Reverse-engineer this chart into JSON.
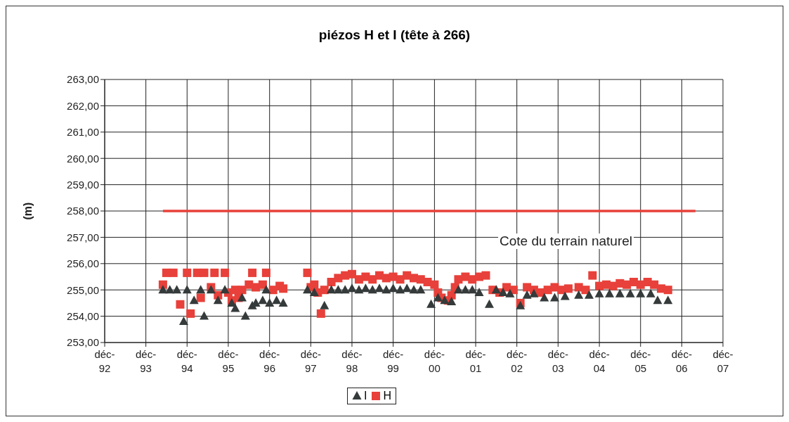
{
  "chart_data": {
    "type": "scatter",
    "title": "piézos H et I (tête à 266)",
    "ylabel": "(m)",
    "xlim": [
      "1992-12",
      "2007-12"
    ],
    "xticks": [
      {
        "value": "1992-12",
        "label": "déc-92"
      },
      {
        "value": "1993-12",
        "label": "déc-93"
      },
      {
        "value": "1994-12",
        "label": "déc-94"
      },
      {
        "value": "1995-12",
        "label": "déc-95"
      },
      {
        "value": "1996-12",
        "label": "déc-96"
      },
      {
        "value": "1997-12",
        "label": "déc-97"
      },
      {
        "value": "1998-12",
        "label": "déc-98"
      },
      {
        "value": "1999-12",
        "label": "déc-99"
      },
      {
        "value": "2000-12",
        "label": "déc-00"
      },
      {
        "value": "2001-12",
        "label": "déc-01"
      },
      {
        "value": "2002-12",
        "label": "déc-02"
      },
      {
        "value": "2003-12",
        "label": "déc-03"
      },
      {
        "value": "2004-12",
        "label": "déc-04"
      },
      {
        "value": "2005-12",
        "label": "déc-05"
      },
      {
        "value": "2006-12",
        "label": "déc-06"
      },
      {
        "value": "2007-12",
        "label": "déc-07"
      }
    ],
    "ylim": [
      253,
      263
    ],
    "yticks": [
      {
        "value": 253,
        "label": "253,00"
      },
      {
        "value": 254,
        "label": "254,00"
      },
      {
        "value": 255,
        "label": "255,00"
      },
      {
        "value": 256,
        "label": "256,00"
      },
      {
        "value": 257,
        "label": "257,00"
      },
      {
        "value": 258,
        "label": "258,00"
      },
      {
        "value": 259,
        "label": "259,00"
      },
      {
        "value": 260,
        "label": "260,00"
      },
      {
        "value": 261,
        "label": "261,00"
      },
      {
        "value": 262,
        "label": "262,00"
      },
      {
        "value": 263,
        "label": "263,00"
      }
    ],
    "grid": true,
    "legend": "bottom",
    "series": [
      {
        "name": "I",
        "marker": "triangle",
        "color": "#353a3a",
        "x": [
          "1994-05",
          "1994-07",
          "1994-09",
          "1994-11",
          "1994-12",
          "1995-02",
          "1995-04",
          "1995-05",
          "1995-07",
          "1995-09",
          "1995-11",
          "1996-01",
          "1996-02",
          "1996-04",
          "1996-05",
          "1996-07",
          "1996-08",
          "1996-10",
          "1996-11",
          "1996-12",
          "1997-02",
          "1997-04",
          "1997-11",
          "1998-01",
          "1998-04",
          "1998-06",
          "1998-08",
          "1998-10",
          "1998-12",
          "1999-02",
          "1999-04",
          "1999-06",
          "1999-08",
          "1999-10",
          "1999-12",
          "2000-02",
          "2000-04",
          "2000-06",
          "2000-08",
          "2000-11",
          "2001-01",
          "2001-03",
          "2001-05",
          "2001-07",
          "2001-09",
          "2001-11",
          "2002-01",
          "2002-04",
          "2002-06",
          "2002-08",
          "2002-10",
          "2003-01",
          "2003-03",
          "2003-05",
          "2003-08",
          "2003-11",
          "2004-02",
          "2004-06",
          "2004-09",
          "2004-12",
          "2005-03",
          "2005-06",
          "2005-09",
          "2005-12",
          "2006-03",
          "2006-05",
          "2006-08"
        ],
        "values": [
          255.0,
          255.0,
          255.0,
          253.8,
          255.0,
          254.6,
          255.0,
          254.0,
          255.0,
          254.6,
          255.0,
          254.5,
          254.3,
          254.7,
          254.0,
          254.4,
          254.5,
          254.6,
          255.0,
          254.5,
          254.6,
          254.5,
          255.0,
          254.9,
          254.4,
          255.0,
          255.0,
          255.0,
          255.05,
          255.0,
          255.05,
          255.0,
          255.05,
          255.0,
          255.05,
          255.0,
          255.05,
          255.0,
          255.0,
          254.45,
          254.7,
          254.6,
          254.55,
          255.0,
          255.0,
          255.0,
          254.9,
          254.45,
          255.0,
          254.9,
          254.85,
          254.4,
          254.8,
          254.85,
          254.7,
          254.7,
          254.75,
          254.8,
          254.8,
          254.85,
          254.85,
          254.85,
          254.85,
          254.85,
          254.85,
          254.6,
          254.6
        ]
      },
      {
        "name": "H",
        "marker": "square",
        "color": "#e8403a",
        "x": [
          "1994-05",
          "1994-06",
          "1994-08",
          "1994-10",
          "1994-12",
          "1995-01",
          "1995-03",
          "1995-04",
          "1995-05",
          "1995-07",
          "1995-08",
          "1995-09",
          "1995-11",
          "1995-12",
          "1996-01",
          "1996-02",
          "1996-03",
          "1996-04",
          "1996-06",
          "1996-07",
          "1996-08",
          "1996-10",
          "1996-11",
          "1997-01",
          "1997-03",
          "1997-04",
          "1997-11",
          "1997-12",
          "1998-01",
          "1998-02",
          "1998-03",
          "1998-04",
          "1998-06",
          "1998-08",
          "1998-10",
          "1998-12",
          "1999-02",
          "1999-04",
          "1999-06",
          "1999-08",
          "1999-10",
          "1999-12",
          "2000-02",
          "2000-04",
          "2000-06",
          "2000-08",
          "2000-10",
          "2000-12",
          "2001-01",
          "2001-02",
          "2001-04",
          "2001-05",
          "2001-06",
          "2001-07",
          "2001-09",
          "2001-11",
          "2002-01",
          "2002-03",
          "2002-05",
          "2002-07",
          "2002-09",
          "2002-11",
          "2003-01",
          "2003-03",
          "2003-05",
          "2003-07",
          "2003-09",
          "2003-11",
          "2004-01",
          "2004-03",
          "2004-06",
          "2004-08",
          "2004-10",
          "2004-12",
          "2005-02",
          "2005-04",
          "2005-06",
          "2005-08",
          "2005-10",
          "2005-12",
          "2006-02",
          "2006-04",
          "2006-06",
          "2006-08"
        ],
        "values": [
          255.2,
          255.65,
          255.65,
          254.45,
          255.65,
          254.1,
          255.65,
          254.7,
          255.65,
          255.1,
          255.65,
          254.8,
          255.65,
          254.9,
          254.6,
          255.0,
          254.7,
          255.0,
          255.2,
          255.65,
          255.1,
          255.2,
          255.65,
          255.0,
          255.15,
          255.05,
          255.65,
          255.1,
          255.2,
          254.9,
          254.1,
          255.0,
          255.3,
          255.45,
          255.55,
          255.6,
          255.4,
          255.5,
          255.4,
          255.55,
          255.45,
          255.5,
          255.4,
          255.55,
          255.45,
          255.4,
          255.3,
          255.2,
          254.9,
          254.7,
          254.6,
          254.8,
          255.1,
          255.4,
          255.5,
          255.4,
          255.5,
          255.55,
          255.0,
          254.9,
          255.1,
          255.0,
          254.5,
          255.1,
          255.0,
          254.9,
          255.0,
          255.1,
          255.0,
          255.05,
          255.1,
          255.0,
          255.55,
          255.15,
          255.2,
          255.15,
          255.25,
          255.2,
          255.3,
          255.2,
          255.3,
          255.2,
          255.05,
          255.0
        ]
      },
      {
        "type": "line",
        "marker": "none",
        "color": "#e8403a",
        "x": [
          "1994-05",
          "2007-04"
        ],
        "values": [
          258,
          258
        ]
      }
    ],
    "annotations": [
      "Cote du terrain naturel"
    ]
  }
}
